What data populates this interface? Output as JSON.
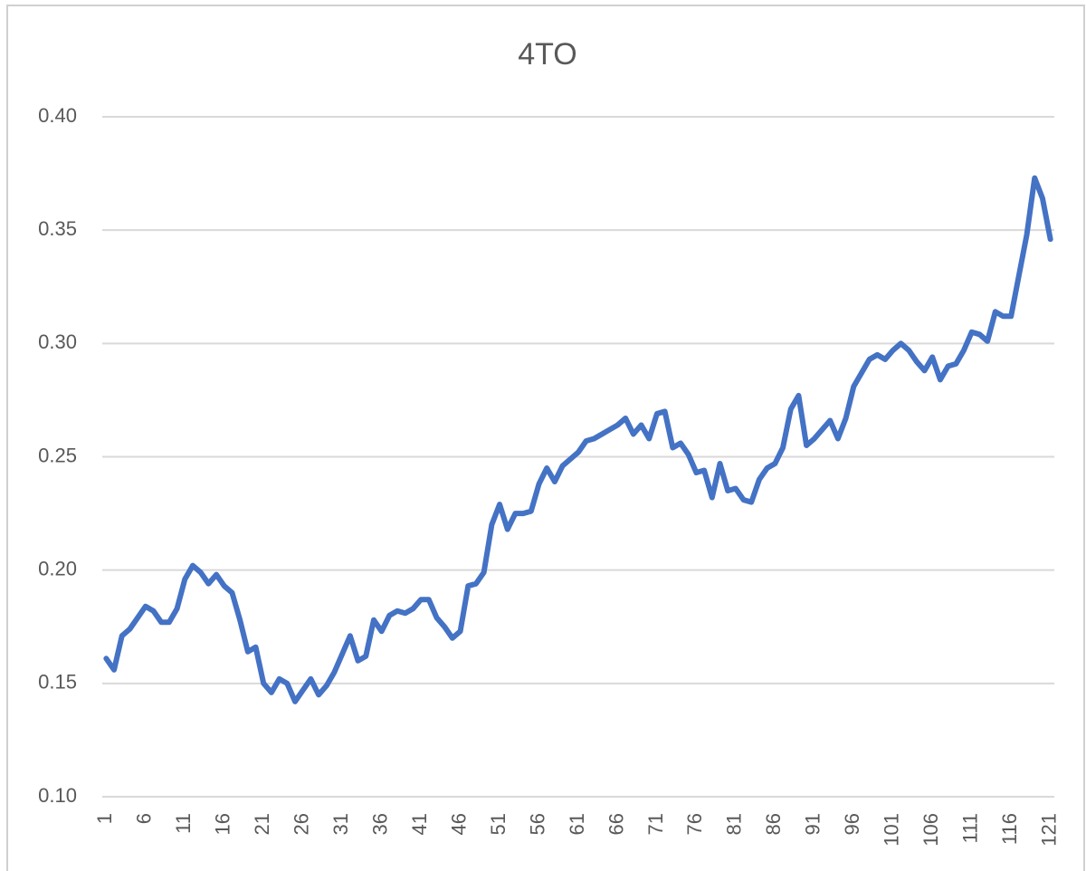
{
  "chart_data": {
    "type": "line",
    "title": "4TO",
    "categories": [
      "1",
      null,
      null,
      null,
      null,
      "6",
      null,
      null,
      null,
      null,
      "11",
      null,
      null,
      null,
      null,
      "16",
      null,
      null,
      null,
      null,
      "21",
      null,
      null,
      null,
      null,
      "26",
      null,
      null,
      null,
      null,
      "31",
      null,
      null,
      null,
      null,
      "36",
      null,
      null,
      null,
      null,
      "41",
      null,
      null,
      null,
      null,
      "46",
      null,
      null,
      null,
      null,
      "51",
      null,
      null,
      null,
      null,
      "56",
      null,
      null,
      null,
      null,
      "61",
      null,
      null,
      null,
      null,
      "66",
      null,
      null,
      null,
      null,
      "71",
      null,
      null,
      null,
      null,
      "76",
      null,
      null,
      null,
      null,
      "81",
      null,
      null,
      null,
      null,
      "86",
      null,
      null,
      null,
      null,
      "91",
      null,
      null,
      null,
      null,
      "96",
      null,
      null,
      null,
      null,
      "101",
      null,
      null,
      null,
      null,
      "106",
      null,
      null,
      null,
      null,
      "111",
      null,
      null,
      null,
      null,
      "116",
      null,
      null,
      null,
      null,
      "121"
    ],
    "values": [
      0.161,
      0.156,
      0.171,
      0.174,
      0.179,
      0.184,
      0.182,
      0.177,
      0.177,
      0.183,
      0.196,
      0.202,
      0.199,
      0.194,
      0.198,
      0.193,
      0.19,
      0.178,
      0.164,
      0.166,
      0.15,
      0.146,
      0.152,
      0.15,
      0.142,
      0.147,
      0.152,
      0.145,
      0.149,
      0.155,
      0.163,
      0.171,
      0.16,
      0.162,
      0.178,
      0.173,
      0.18,
      0.182,
      0.181,
      0.183,
      0.187,
      0.187,
      0.179,
      0.175,
      0.17,
      0.173,
      0.193,
      0.194,
      0.199,
      0.22,
      0.229,
      0.218,
      0.225,
      0.225,
      0.226,
      0.238,
      0.245,
      0.239,
      0.246,
      0.249,
      0.252,
      0.257,
      0.258,
      0.26,
      0.262,
      0.264,
      0.267,
      0.26,
      0.264,
      0.258,
      0.269,
      0.27,
      0.254,
      0.256,
      0.251,
      0.243,
      0.244,
      0.232,
      0.247,
      0.235,
      0.236,
      0.231,
      0.23,
      0.24,
      0.245,
      0.247,
      0.254,
      0.271,
      0.277,
      0.255,
      0.258,
      0.262,
      0.266,
      0.258,
      0.267,
      0.281,
      0.287,
      0.293,
      0.295,
      0.293,
      0.297,
      0.3,
      0.297,
      0.292,
      0.288,
      0.294,
      0.284,
      0.29,
      0.291,
      0.297,
      0.305,
      0.304,
      0.301,
      0.314,
      0.312,
      0.312,
      0.33,
      0.348,
      0.373,
      0.364,
      0.346
    ],
    "color": "#4472c4",
    "ylim": [
      0.1,
      0.4
    ],
    "yticks": [
      {
        "value": 0.1,
        "label": "0.10"
      },
      0.15,
      {
        "value": 0.2,
        "label": "0.20"
      },
      0.25,
      {
        "value": 0.3,
        "label": "0.30"
      },
      0.35,
      {
        "value": 0.4,
        "label": "0.40"
      }
    ],
    "grid": true
  }
}
